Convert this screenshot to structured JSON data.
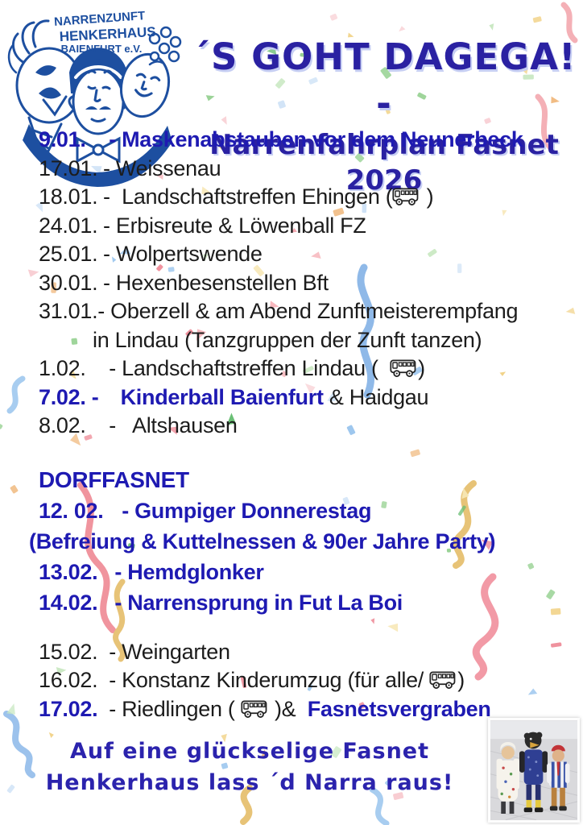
{
  "logo": {
    "line1": "NARRENZUNFT",
    "line2": "HENKERHAUS",
    "line3": "BAIENFURT e.V."
  },
  "title": {
    "line1": "´S GOHT DAGEGA! -",
    "line2": "Narrenfahrplan Fasnet 2026"
  },
  "colors": {
    "accent_blue": "#1e1ab2",
    "title_blue": "#2a21a2",
    "logo_blue": "#1d4fa0",
    "text_black": "#1c1c1c"
  },
  "schedule": {
    "items": [
      {
        "date": "9.01.",
        "sep": " - ",
        "text": "Maskenabstauben vor dem Neunerbeck"
      },
      {
        "date": "17.01.",
        "sep": "- ",
        "text": "Weissenau"
      },
      {
        "date": "18.01.",
        "sep": "-  ",
        "text_before_bus": "Landschaftstreffen Ehingen (",
        "text_after_bus": " )"
      },
      {
        "date": "24.01.",
        "sep": "- ",
        "text": "Erbisreute & Löwenball FZ"
      },
      {
        "date": "25.01.",
        "sep": "- ",
        "text": "Wolpertswende"
      },
      {
        "date": "30.01.",
        "sep": "- ",
        "text": "Hexenbesenstellen Bft"
      },
      {
        "date": "31.01.-",
        "sep": " ",
        "text": "Oberzell & am Abend Zunftmeisterempfang",
        "text_cont": "in Lindau (Tanzgruppen der Zunft tanzen)"
      },
      {
        "date": "1.02.",
        "sep": " - ",
        "text_before_bus": "Landschaftstreffen Lindau (  ",
        "text_after_bus": ")"
      },
      {
        "date": "7.02. -",
        "sep": "   ",
        "text_blue": "Kinderball Baienfurt",
        "text_black": " & Haidgau"
      },
      {
        "date": "8.02.",
        "sep": " -   ",
        "text": "Altshausen"
      }
    ]
  },
  "dorffasnet": {
    "heading": "DORFFASNET",
    "items": [
      {
        "date": "12. 02.",
        "sep": " - ",
        "text": "Gumpiger Donnerestag"
      },
      {
        "text": "(Befreiung & Kuttelnessen & 90er Jahre Party)"
      },
      {
        "date": "13.02.",
        "sep": "  - ",
        "text": "Hemdglonker"
      },
      {
        "date": "14.02.",
        "sep": "  - ",
        "text": "Narrensprung in Fut La Boi"
      }
    ]
  },
  "final_items": [
    {
      "date": "15.02.",
      "sep": " - ",
      "text": "Weingarten"
    },
    {
      "date": "16.02.",
      "sep": " - ",
      "text_before_bus": "Konstanz Kinderumzug (für alle/ ",
      "text_after_bus": ")"
    },
    {
      "date": "17.02.",
      "mid_before_bus": " - Riedlingen ( ",
      "mid_after_bus": " )&  ",
      "text_blue": "Fasnetsvergraben"
    }
  ],
  "footer": {
    "line1": "Auf eine glückselige Fasnet",
    "line2": "Henkerhaus lass ´d Narra raus!"
  }
}
